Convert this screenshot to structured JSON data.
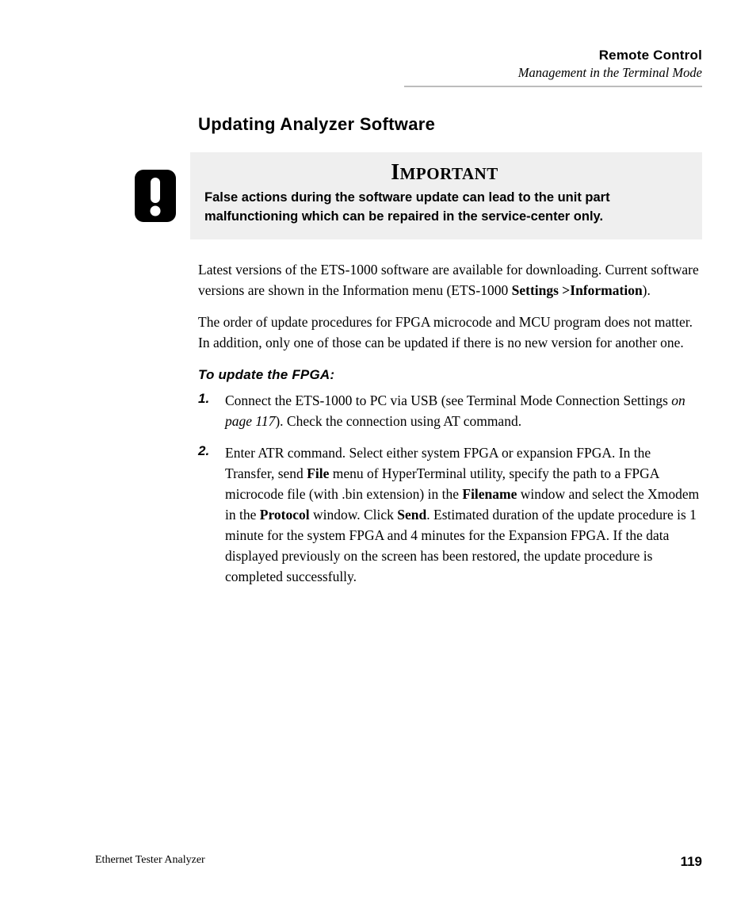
{
  "header": {
    "title": "Remote Control",
    "subtitle": "Management in the Terminal Mode"
  },
  "section_title": "Updating Analyzer Software",
  "callout": {
    "heading_cap": "I",
    "heading_rest": "MPORTANT",
    "text": "False actions during the software update can lead to the unit part malfunctioning which can be repaired in the service-center only."
  },
  "paragraphs": {
    "p1_a": "Latest versions of the ETS-1000 software are available for downloading. Current software versions are shown in the Information menu (ETS-1000 ",
    "p1_b": "Settings >Information",
    "p1_c": ").",
    "p2": "The order of update procedures for FPGA microcode and MCU program does not matter. In addition, only one of those can be updated if there is no new version for another one."
  },
  "subhead": "To update the FPGA:",
  "steps": [
    {
      "num": "1.",
      "runs": [
        {
          "t": "Connect the ETS-1000 to PC via USB (see Terminal Mode Connection Settings "
        },
        {
          "t": "on page 117",
          "i": true
        },
        {
          "t": "). Check the connection using AT command."
        }
      ]
    },
    {
      "num": "2.",
      "runs": [
        {
          "t": "Enter ATR command. Select either system FPGA or expansion FPGA. In the Transfer, send "
        },
        {
          "t": "File",
          "b": true
        },
        {
          "t": " menu of HyperTerminal utility, specify the path to a FPGA microcode file (with .bin extension) in the "
        },
        {
          "t": "Filename",
          "b": true
        },
        {
          "t": " window and select the Xmodem in the "
        },
        {
          "t": "Protocol",
          "b": true
        },
        {
          "t": " window. Click "
        },
        {
          "t": "Send",
          "b": true
        },
        {
          "t": ". Estimated duration of the update procedure is 1 minute for the system FPGA and 4 minutes for the Expansion FPGA. If the data displayed previously on the screen has been restored, the update procedure is completed successfully."
        }
      ]
    }
  ],
  "footer": {
    "left": "Ethernet Tester Analyzer",
    "page": "119"
  },
  "colors": {
    "rule": "#bcbcbc",
    "callout_bg": "#efefef"
  }
}
